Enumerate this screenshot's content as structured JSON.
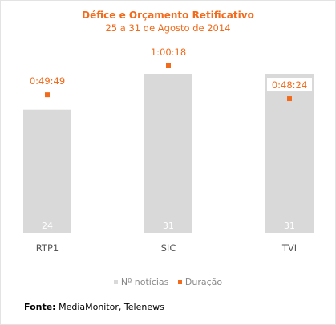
{
  "chart_data": {
    "type": "bar",
    "title": "Défice e Orçamento Retificativo",
    "subtitle": "25 a 31 de Agosto de 2014",
    "categories": [
      "RTP1",
      "SIC",
      "TVI"
    ],
    "series": [
      {
        "name": "Nº notícias",
        "kind": "bar",
        "color": "#d9d9d9",
        "values": [
          24,
          31,
          31
        ]
      },
      {
        "name": "Duração",
        "kind": "point",
        "color": "#f26a1b",
        "values": [
          49.82,
          60.3,
          48.4
        ],
        "labels": [
          "0:49:49",
          "1:00:18",
          "0:48:24"
        ]
      }
    ],
    "legend_position": "bottom",
    "grid": false
  },
  "source": {
    "label": "Fonte:",
    "text": "MediaMonitor, Telenews"
  }
}
